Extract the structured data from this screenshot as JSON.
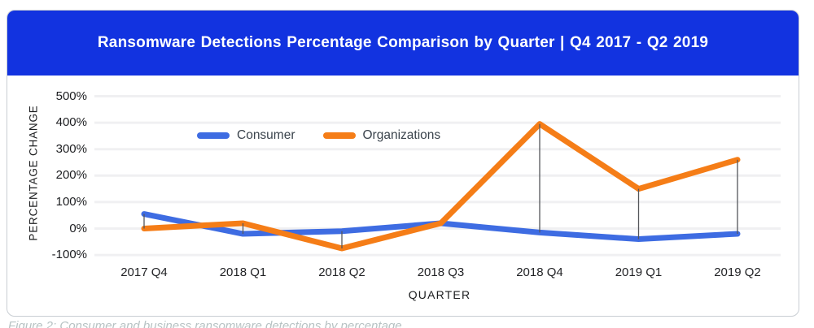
{
  "header": {
    "title": "Ransomware Detections Percentage Comparison by Quarter | Q4 2017 - Q2 2019"
  },
  "caption": "Figure 2: Consumer and business ransomware detections by percentage",
  "colors": {
    "header_bg": "#1233e0",
    "consumer": "#3e6ce2",
    "organizations": "#f57d17",
    "gridline": "#f0f0f2",
    "connector": "#54565a",
    "card_border": "#c9ced3"
  },
  "chart_data": {
    "type": "line",
    "title": "Ransomware Detections Percentage Comparison by Quarter | Q4 2017 - Q2 2019",
    "categories": [
      "2017 Q4",
      "2018 Q1",
      "2018 Q2",
      "2018 Q3",
      "2018 Q4",
      "2019 Q1",
      "2019 Q2"
    ],
    "series": [
      {
        "name": "Consumer",
        "color": "#3e6ce2",
        "values": [
          55,
          -20,
          -10,
          20,
          -15,
          -40,
          -20
        ]
      },
      {
        "name": "Organizations",
        "color": "#f57d17",
        "values": [
          0,
          20,
          -75,
          20,
          395,
          150,
          260
        ]
      }
    ],
    "xlabel": "QUARTER",
    "ylabel": "PERCENTAGE CHANGE",
    "y_ticks": [
      500,
      400,
      300,
      200,
      100,
      0,
      -100
    ],
    "y_tick_labels": [
      "500%",
      "400%",
      "300%",
      "200%",
      "100%",
      "0%",
      "-100%"
    ],
    "ylim": [
      -100,
      500
    ],
    "grid": true,
    "legend_position": "inside-top-left",
    "value_connectors": true
  }
}
